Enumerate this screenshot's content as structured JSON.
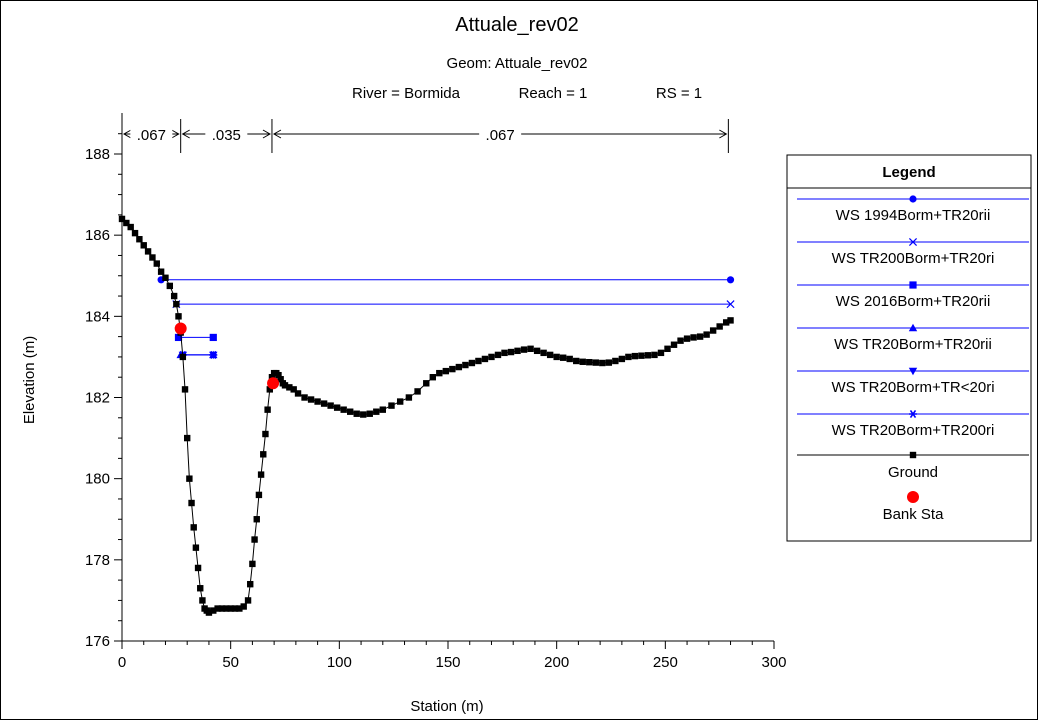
{
  "chart_data": {
    "type": "line",
    "title": "Attuale_rev02",
    "subtitle": "Geom: Attuale_rev02",
    "info": {
      "river": "River = Bormida",
      "reach": "Reach = 1",
      "rs": "RS = 1"
    },
    "xlabel": "Station (m)",
    "ylabel": "Elevation (m)",
    "xlim": [
      0,
      300
    ],
    "ylim": [
      176,
      189
    ],
    "xticks": [
      0,
      50,
      100,
      150,
      200,
      250,
      300
    ],
    "yticks": [
      176,
      178,
      180,
      182,
      184,
      186,
      188
    ],
    "grid": false,
    "legend_title": "Legend",
    "legend_position": "right",
    "mannings": [
      {
        "from": 0,
        "to": 27,
        "label": ".067"
      },
      {
        "from": 27,
        "to": 69,
        "label": ".035"
      },
      {
        "from": 69,
        "to": 279,
        "label": ".067"
      }
    ],
    "water_surfaces": [
      {
        "name": "WS 1994Borm+TR20rii",
        "marker": "circle",
        "color": "#0000ff",
        "x": [
          18,
          280
        ],
        "y": [
          184.9,
          184.9
        ]
      },
      {
        "name": "WS TR200Borm+TR20ri",
        "marker": "x",
        "color": "#0000ff",
        "x": [
          25,
          280
        ],
        "y": [
          184.3,
          184.3
        ]
      },
      {
        "name": "WS 2016Borm+TR20rii",
        "marker": "square",
        "color": "#0000ff",
        "x": [
          26,
          42
        ],
        "y": [
          183.48,
          183.48
        ]
      },
      {
        "name": "WS TR20Borm+TR20rii",
        "marker": "triangle-up",
        "color": "#0000ff",
        "x": [
          27,
          42
        ],
        "y": [
          183.05,
          183.05
        ]
      },
      {
        "name": "WS TR20Borm+TR<20ri",
        "marker": "triangle-down",
        "color": "#0000ff",
        "x": [
          28,
          42
        ],
        "y": [
          183.05,
          183.05
        ]
      },
      {
        "name": "WS TR20Borm+TR200ri",
        "marker": "asterisk",
        "color": "#0000ff",
        "x": [
          28,
          42
        ],
        "y": [
          183.05,
          183.05
        ]
      }
    ],
    "ground": {
      "name": "Ground",
      "color": "#000000",
      "marker": "square",
      "x": [
        0,
        2,
        4,
        6,
        8,
        10,
        12,
        14,
        16,
        18,
        20,
        22,
        24,
        25,
        26,
        27,
        28,
        29,
        30,
        31,
        32,
        33,
        34,
        35,
        36,
        37,
        38,
        39,
        40,
        42,
        44,
        46,
        48,
        50,
        52,
        54,
        56,
        58,
        59,
        60,
        61,
        62,
        63,
        64,
        65,
        66,
        67,
        68,
        69,
        70,
        71,
        72,
        73,
        74,
        75,
        77,
        79,
        81,
        84,
        87,
        90,
        93,
        96,
        99,
        102,
        105,
        108,
        111,
        114,
        117,
        120,
        124,
        128,
        132,
        136,
        140,
        143,
        146,
        149,
        152,
        155,
        158,
        161,
        164,
        167,
        170,
        173,
        176,
        179,
        182,
        185,
        188,
        191,
        194,
        197,
        200,
        203,
        206,
        209,
        212,
        215,
        218,
        221,
        224,
        227,
        230,
        233,
        236,
        239,
        242,
        245,
        248,
        251,
        254,
        257,
        260,
        263,
        266,
        269,
        272,
        275,
        278,
        280
      ],
      "y": [
        186.4,
        186.3,
        186.2,
        186.05,
        185.9,
        185.75,
        185.6,
        185.45,
        185.3,
        185.1,
        184.95,
        184.75,
        184.5,
        184.3,
        184.0,
        183.6,
        183.0,
        182.2,
        181.0,
        180.0,
        179.4,
        178.8,
        178.3,
        177.8,
        177.3,
        177.0,
        176.8,
        176.75,
        176.7,
        176.75,
        176.8,
        176.8,
        176.8,
        176.8,
        176.8,
        176.8,
        176.85,
        177.0,
        177.4,
        177.9,
        178.5,
        179.0,
        179.6,
        180.1,
        180.6,
        181.1,
        181.7,
        182.2,
        182.5,
        182.6,
        182.6,
        182.55,
        182.45,
        182.35,
        182.3,
        182.25,
        182.2,
        182.1,
        182.0,
        181.95,
        181.9,
        181.85,
        181.8,
        181.75,
        181.7,
        181.65,
        181.6,
        181.58,
        181.6,
        181.65,
        181.7,
        181.8,
        181.9,
        182.0,
        182.15,
        182.35,
        182.5,
        182.6,
        182.65,
        182.7,
        182.75,
        182.8,
        182.85,
        182.9,
        182.95,
        183.0,
        183.05,
        183.1,
        183.12,
        183.15,
        183.18,
        183.2,
        183.15,
        183.1,
        183.05,
        183.0,
        182.98,
        182.95,
        182.9,
        182.88,
        182.87,
        182.86,
        182.85,
        182.86,
        182.9,
        182.95,
        183.0,
        183.02,
        183.03,
        183.04,
        183.05,
        183.1,
        183.2,
        183.3,
        183.4,
        183.45,
        183.48,
        183.5,
        183.55,
        183.65,
        183.75,
        183.85,
        183.9
      ]
    },
    "bank_stations": {
      "name": "Bank Sta",
      "color": "#ff0000",
      "x": [
        27,
        69.5
      ],
      "y": [
        183.7,
        182.35
      ]
    }
  }
}
